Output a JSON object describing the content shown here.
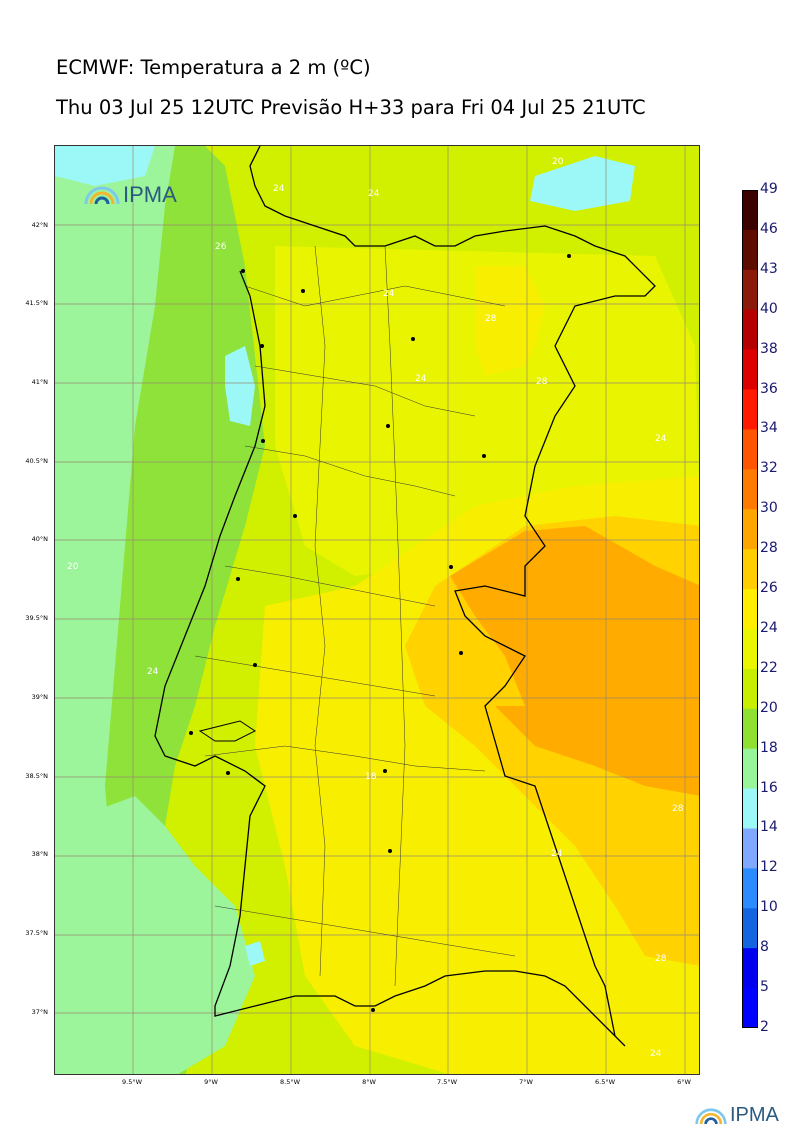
{
  "header": {
    "title": "ECMWF: Temperatura a 2 m (ºC)",
    "subtitle": "Thu 03 Jul 25 12UTC Previsão H+33 para Fri 04 Jul 25 21UTC"
  },
  "map": {
    "logo_text": "IPMA",
    "lat_labels": [
      "42°N",
      "41.5°N",
      "41°N",
      "40.5°N",
      "40°N",
      "39.5°N",
      "39°N",
      "38.5°N",
      "38°N",
      "37.5°N",
      "37°N"
    ],
    "lon_labels": [
      "9.5°W",
      "9°W",
      "8.5°W",
      "8°W",
      "7.5°W",
      "7°W",
      "6.5°W",
      "6°W"
    ],
    "contour_labels": [
      "20",
      "24",
      "24",
      "26",
      "24",
      "28",
      "24",
      "28",
      "24",
      "20",
      "24",
      "18",
      "24",
      "28",
      "28",
      "24"
    ]
  },
  "colorbar": {
    "tick_labels": [
      "49",
      "46",
      "43",
      "40",
      "38",
      "36",
      "34",
      "32",
      "30",
      "28",
      "26",
      "24",
      "22",
      "20",
      "18",
      "16",
      "14",
      "12",
      "10",
      "8",
      "5",
      "2"
    ],
    "colors": [
      "#3b0000",
      "#5e0c00",
      "#8b1a0a",
      "#b50000",
      "#dd0000",
      "#ff1a00",
      "#ff5500",
      "#ff7a00",
      "#ffa500",
      "#ffce00",
      "#ffee00",
      "#eaf500",
      "#c9ef00",
      "#8fe030",
      "#98f59a",
      "#9cf7f7",
      "#80a8ff",
      "#2a8cff",
      "#1565e0",
      "#0000ee",
      "#0000ff",
      "#7a10ff",
      "#dd00ff"
    ]
  },
  "footer": {
    "logo_text": "IPMA"
  }
}
